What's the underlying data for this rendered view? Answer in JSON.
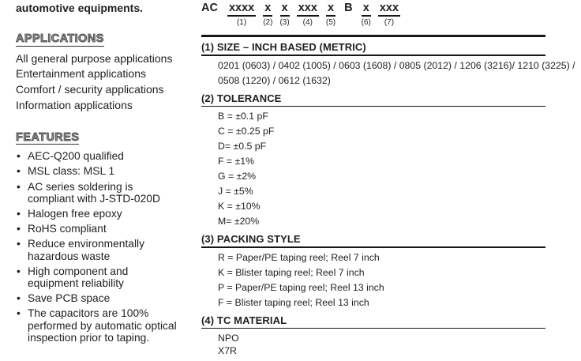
{
  "left_column": {
    "intro": "automotive equipments.",
    "applications": {
      "heading": "APPLICATIONS",
      "items": [
        "All general purpose applications",
        "Entertainment applications",
        "Comfort / security applications",
        "Information applications"
      ]
    },
    "features": {
      "heading": "FEATURES",
      "items": [
        "AEC-Q200 qualified",
        "MSL class: MSL 1",
        "AC series soldering is\ncompliant with J-STD-020D",
        "Halogen free epoxy",
        "RoHS compliant",
        "Reduce environmentally\nhazardous waste",
        "High component and\nequipment reliability",
        "Save PCB space",
        "The capacitors are 100%\nperformed by automatic optical\ninspection prior to taping."
      ]
    }
  },
  "part_number": {
    "prefix": "AC",
    "segments": [
      {
        "text": "xxxx",
        "label": "(1)",
        "style": "u"
      },
      {
        "text": "x",
        "label": "(2)",
        "style": "u"
      },
      {
        "text": "x",
        "label": "(3)",
        "style": "u"
      },
      {
        "text": "xxx",
        "label": "(4)",
        "style": "u"
      },
      {
        "text": "x",
        "label": "(5)",
        "style": "u"
      },
      {
        "text": "B",
        "label": "",
        "style": "plain"
      },
      {
        "text": "x",
        "label": "(6)",
        "style": "u"
      },
      {
        "text": "xxx",
        "label": "(7)",
        "style": "u"
      }
    ]
  },
  "sections": [
    {
      "title": "(1) SIZE – INCH BASED (METRIC)",
      "lines": [
        "0201 (0603) / 0402 (1005) / 0603 (1608) / 0805 (2012) / 1206 (3216)/ 1210 (3225) /\n0508 (1220) / 0612 (1632)"
      ]
    },
    {
      "title": "(2) TOLERANCE",
      "lines": [
        "B = ±0.1 pF",
        "C = ±0.25 pF",
        "D= ±0.5 pF",
        "F = ±1%",
        "G = ±2%",
        "J = ±5%",
        "K = ±10%",
        "M= ±20%"
      ]
    },
    {
      "title": "(3) PACKING STYLE",
      "lines": [
        "R = Paper/PE taping reel; Reel 7 inch",
        "K = Blister taping reel; Reel 7 inch",
        "P = Paper/PE taping reel; Reel 13 inch",
        "F = Blister taping reel; Reel 13 inch"
      ]
    },
    {
      "title": "(4) TC MATERIAL",
      "lines": [
        "NPO",
        "X7R"
      ]
    }
  ]
}
